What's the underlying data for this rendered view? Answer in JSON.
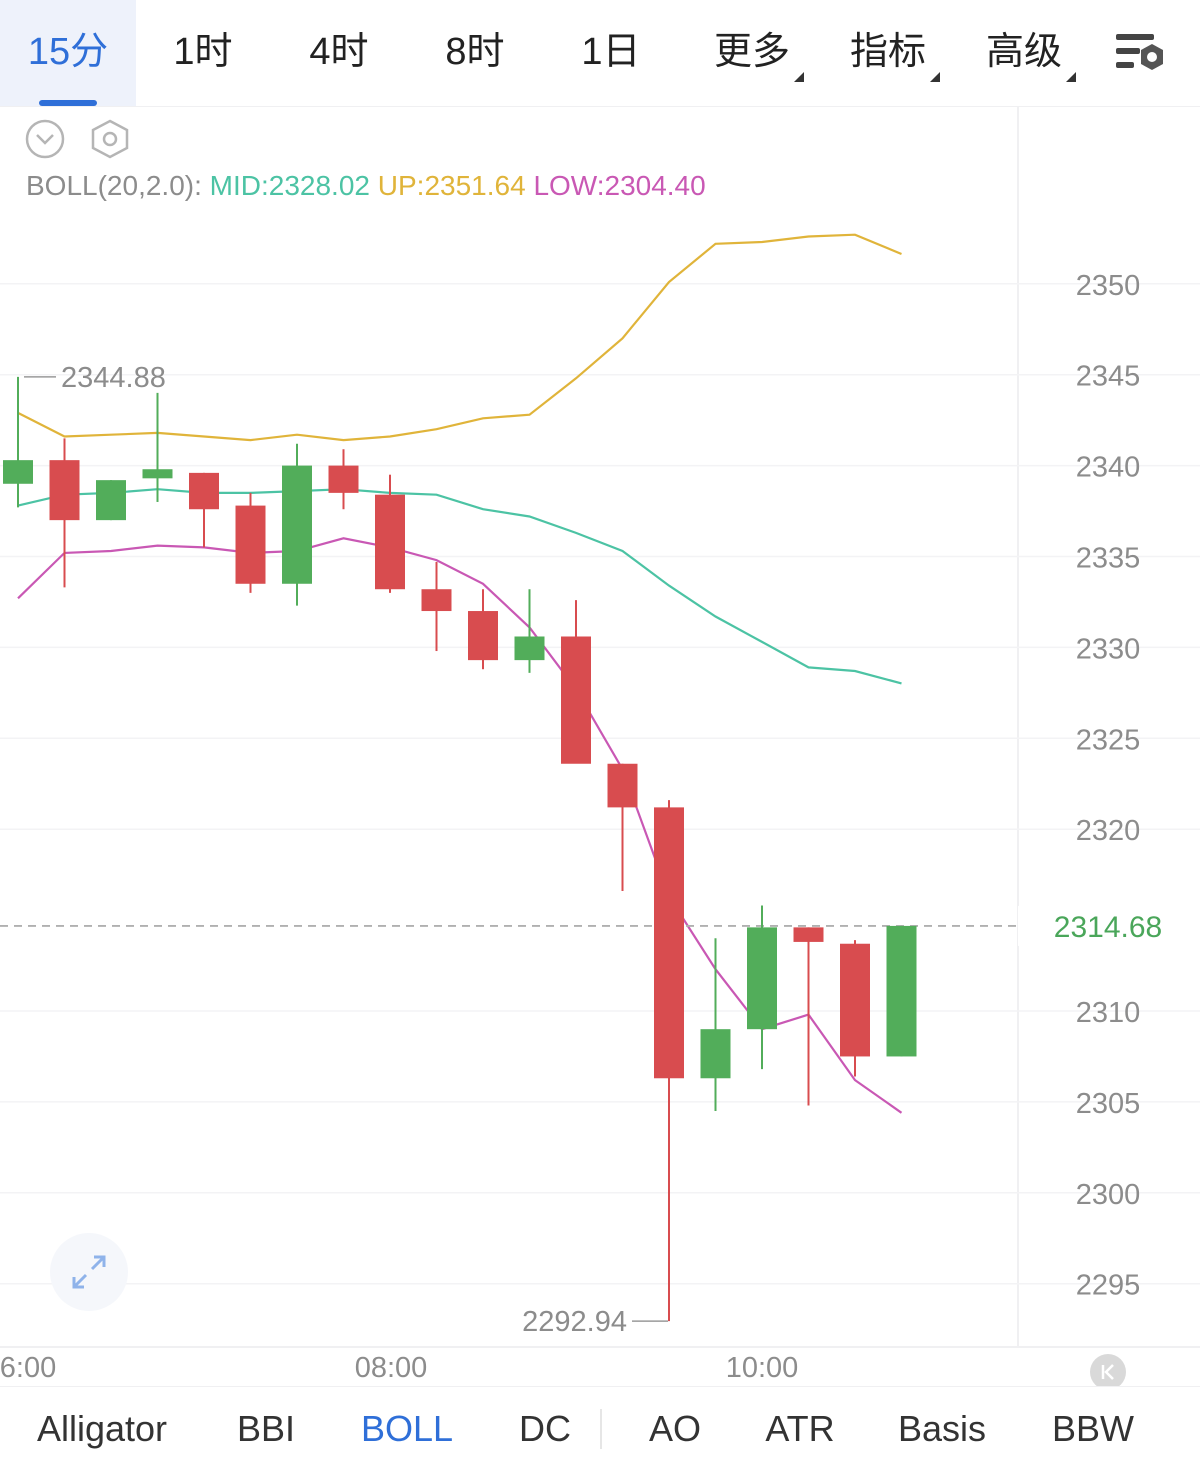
{
  "toolbar": {
    "tabs": [
      {
        "label": "15分",
        "active": true
      },
      {
        "label": "1时"
      },
      {
        "label": "4时"
      },
      {
        "label": "8时"
      },
      {
        "label": "1日"
      },
      {
        "label": "更多",
        "dropdown": true
      },
      {
        "label": "指标",
        "dropdown": true
      },
      {
        "label": "高级",
        "dropdown": true
      }
    ],
    "settings_icon": "chart-settings-icon"
  },
  "colors": {
    "accent": "#2f6fd8",
    "up_candle": "#52ad5a",
    "down_candle": "#d84c4f",
    "boll_mid": "#4cc3a4",
    "boll_up": "#e0b43a",
    "boll_low": "#c958b4",
    "current_price": "#4aa65a",
    "axis_text": "#8c8c8c"
  },
  "indicator_legend": {
    "name": "BOLL(20,2.0):",
    "mid": "MID:2328.02",
    "up": "UP:2351.64",
    "low": "LOW:2304.40"
  },
  "chart_data": {
    "type": "candlestick",
    "interval": "15分",
    "ylim": [
      2291,
      2353
    ],
    "y_ticks": [
      2350,
      2345,
      2340,
      2335,
      2330,
      2325,
      2320,
      2310,
      2305,
      2300,
      2295
    ],
    "x_ticks": [
      "6:00",
      "08:00",
      "10:00"
    ],
    "current_price": "2314.68",
    "high_marker": "2344.88",
    "low_marker": "2292.94",
    "candles": [
      {
        "o": 2339.0,
        "h": 2344.88,
        "l": 2337.7,
        "c": 2340.3
      },
      {
        "o": 2340.3,
        "h": 2341.5,
        "l": 2333.3,
        "c": 2337.0
      },
      {
        "o": 2337.0,
        "h": 2339.2,
        "l": 2337.0,
        "c": 2339.2
      },
      {
        "o": 2339.3,
        "h": 2344.0,
        "l": 2338.0,
        "c": 2339.8
      },
      {
        "o": 2339.6,
        "h": 2339.6,
        "l": 2335.5,
        "c": 2337.6
      },
      {
        "o": 2337.8,
        "h": 2338.5,
        "l": 2333.0,
        "c": 2333.5
      },
      {
        "o": 2333.5,
        "h": 2341.2,
        "l": 2332.3,
        "c": 2340.0
      },
      {
        "o": 2340.0,
        "h": 2340.9,
        "l": 2337.6,
        "c": 2338.5
      },
      {
        "o": 2338.4,
        "h": 2339.5,
        "l": 2333.0,
        "c": 2333.2
      },
      {
        "o": 2333.2,
        "h": 2334.7,
        "l": 2329.8,
        "c": 2332.0
      },
      {
        "o": 2332.0,
        "h": 2333.2,
        "l": 2328.8,
        "c": 2329.3
      },
      {
        "o": 2329.3,
        "h": 2333.2,
        "l": 2328.6,
        "c": 2330.6
      },
      {
        "o": 2330.6,
        "h": 2332.6,
        "l": 2323.8,
        "c": 2323.6
      },
      {
        "o": 2323.6,
        "h": 2323.6,
        "l": 2316.6,
        "c": 2321.2
      },
      {
        "o": 2321.2,
        "h": 2321.6,
        "l": 2292.94,
        "c": 2306.3
      },
      {
        "o": 2306.3,
        "h": 2314.0,
        "l": 2304.5,
        "c": 2309.0
      },
      {
        "o": 2309.0,
        "h": 2315.8,
        "l": 2306.8,
        "c": 2314.6
      },
      {
        "o": 2314.6,
        "h": 2314.6,
        "l": 2304.8,
        "c": 2313.8
      },
      {
        "o": 2313.7,
        "h": 2313.9,
        "l": 2306.4,
        "c": 2307.5
      },
      {
        "o": 2307.5,
        "h": 2314.68,
        "l": 2307.5,
        "c": 2314.68
      }
    ],
    "boll_up": [
      2342.9,
      2341.6,
      2341.7,
      2341.8,
      2341.6,
      2341.4,
      2341.7,
      2341.4,
      2341.6,
      2342.0,
      2342.6,
      2342.8,
      2344.8,
      2347.0,
      2350.1,
      2352.2,
      2352.3,
      2352.6,
      2352.7,
      2351.64
    ],
    "boll_mid": [
      2337.8,
      2338.4,
      2338.5,
      2338.7,
      2338.5,
      2338.5,
      2338.6,
      2338.7,
      2338.5,
      2338.4,
      2337.6,
      2337.2,
      2336.3,
      2335.3,
      2333.4,
      2331.7,
      2330.3,
      2328.9,
      2328.7,
      2328.02
    ],
    "boll_low": [
      2332.7,
      2335.2,
      2335.3,
      2335.6,
      2335.5,
      2335.2,
      2335.3,
      2336.0,
      2335.5,
      2334.8,
      2333.5,
      2331.1,
      2327.7,
      2323.3,
      2316.3,
      2312.3,
      2309.0,
      2309.8,
      2306.2,
      2304.4
    ]
  },
  "bottom_indicators": [
    {
      "label": "Alligator"
    },
    {
      "label": "BBI"
    },
    {
      "label": "BOLL",
      "active": true
    },
    {
      "label": "DC"
    },
    {
      "label": "AO"
    },
    {
      "label": "ATR"
    },
    {
      "label": "Basis"
    },
    {
      "label": "BBW"
    }
  ]
}
